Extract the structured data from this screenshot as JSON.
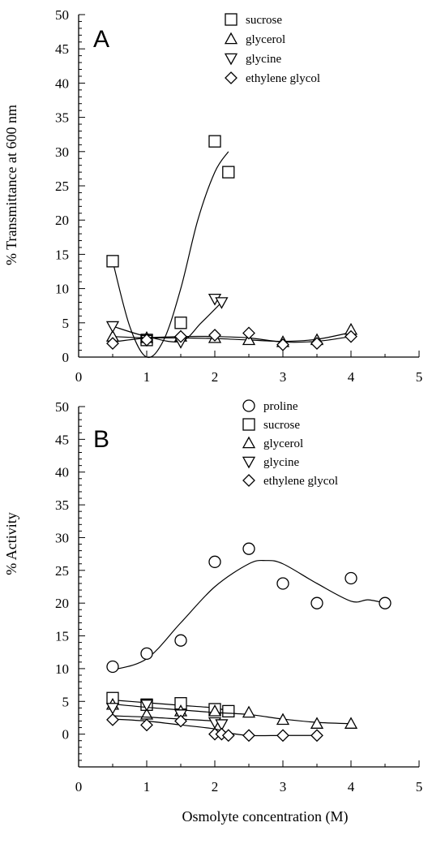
{
  "chart_data": [
    {
      "type": "scatter",
      "panel_label": "A",
      "ylabel": "% Transmittance at 600 nm",
      "xlabel": "",
      "xlim": [
        0,
        5
      ],
      "ylim": [
        0,
        50
      ],
      "xticks": [
        "0",
        "1",
        "2",
        "3",
        "4",
        "5"
      ],
      "yticks": [
        "0",
        "5",
        "10",
        "15",
        "20",
        "25",
        "30",
        "35",
        "40",
        "45",
        "50"
      ],
      "grid": false,
      "legend_position": "top-right",
      "series": [
        {
          "name": "sucrose",
          "marker": "square",
          "points": [
            [
              0.5,
              14
            ],
            [
              1.0,
              2.5
            ],
            [
              1.5,
              5
            ],
            [
              2.0,
              31.5
            ],
            [
              2.2,
              27
            ]
          ],
          "fit": [
            [
              0.5,
              14
            ],
            [
              0.75,
              4.5
            ],
            [
              1.0,
              0
            ],
            [
              1.25,
              2.5
            ],
            [
              1.5,
              10
            ],
            [
              1.75,
              20
            ],
            [
              2.0,
              27
            ],
            [
              2.2,
              30
            ]
          ]
        },
        {
          "name": "glycerol",
          "marker": "triangle-up",
          "points": [
            [
              0.5,
              3
            ],
            [
              1.0,
              2.8
            ],
            [
              1.5,
              3
            ],
            [
              2.0,
              2.8
            ],
            [
              2.5,
              2.5
            ],
            [
              3.0,
              2.2
            ],
            [
              3.5,
              2.5
            ],
            [
              4.0,
              4
            ]
          ],
          "fit": [
            [
              0.5,
              3
            ],
            [
              1.0,
              2.8
            ],
            [
              1.5,
              2.8
            ],
            [
              2.0,
              2.7
            ],
            [
              2.5,
              2.5
            ],
            [
              3.0,
              2.3
            ],
            [
              3.5,
              2.6
            ],
            [
              4.0,
              3.6
            ]
          ]
        },
        {
          "name": "glycine",
          "marker": "triangle-down",
          "points": [
            [
              0.5,
              4.5
            ],
            [
              1.0,
              2.5
            ],
            [
              1.5,
              2.2
            ],
            [
              2.0,
              8.5
            ],
            [
              2.1,
              8
            ]
          ],
          "fit": [
            [
              0.5,
              4.5
            ],
            [
              1.0,
              3.0
            ],
            [
              1.5,
              2.3
            ],
            [
              1.8,
              5
            ],
            [
              2.1,
              8
            ]
          ]
        },
        {
          "name": "ethylene glycol",
          "marker": "diamond",
          "points": [
            [
              0.5,
              2
            ],
            [
              1.0,
              2.5
            ],
            [
              1.5,
              3
            ],
            [
              2.0,
              3.2
            ],
            [
              2.5,
              3.5
            ],
            [
              3.0,
              1.8
            ],
            [
              3.5,
              2
            ],
            [
              4.0,
              3
            ]
          ],
          "fit": [
            [
              0.5,
              2.2
            ],
            [
              1.0,
              2.8
            ],
            [
              1.5,
              3.0
            ],
            [
              2.0,
              3.0
            ],
            [
              2.5,
              2.8
            ],
            [
              3.0,
              2.2
            ],
            [
              3.5,
              2.3
            ],
            [
              4.0,
              3.0
            ]
          ]
        }
      ]
    },
    {
      "type": "scatter",
      "panel_label": "B",
      "ylabel": "% Activity",
      "xlabel": "Osmolyte concentration (M)",
      "xlim": [
        0,
        5
      ],
      "ylim": [
        -5,
        50
      ],
      "xticks": [
        "0",
        "1",
        "2",
        "3",
        "4",
        "5"
      ],
      "yticks": [
        "0",
        "5",
        "10",
        "15",
        "20",
        "25",
        "30",
        "35",
        "40",
        "45",
        "50"
      ],
      "grid": false,
      "legend_position": "top-right",
      "series": [
        {
          "name": "proline",
          "marker": "circle",
          "points": [
            [
              0.5,
              10.3
            ],
            [
              1.0,
              12.3
            ],
            [
              1.5,
              14.3
            ],
            [
              2.0,
              26.3
            ],
            [
              2.5,
              28.3
            ],
            [
              3.0,
              23
            ],
            [
              3.5,
              20
            ],
            [
              4.0,
              23.8
            ],
            [
              4.5,
              20
            ]
          ],
          "fit": [
            [
              0.5,
              9.8
            ],
            [
              1.0,
              11.5
            ],
            [
              1.5,
              17
            ],
            [
              2.0,
              22.5
            ],
            [
              2.5,
              26
            ],
            [
              2.75,
              26.5
            ],
            [
              3.0,
              26
            ],
            [
              3.5,
              23
            ],
            [
              4.0,
              20.3
            ],
            [
              4.25,
              20.5
            ],
            [
              4.5,
              20
            ]
          ]
        },
        {
          "name": "sucrose",
          "marker": "square",
          "points": [
            [
              0.5,
              5.5
            ],
            [
              1.0,
              4.5
            ],
            [
              1.5,
              4.7
            ],
            [
              2.0,
              3.8
            ],
            [
              2.2,
              3.5
            ]
          ],
          "fit": [
            [
              0.5,
              5.2
            ],
            [
              1.0,
              4.8
            ],
            [
              1.5,
              4.4
            ],
            [
              2.0,
              4.0
            ],
            [
              2.2,
              3.5
            ]
          ]
        },
        {
          "name": "glycerol",
          "marker": "triangle-up",
          "points": [
            [
              0.5,
              4.5
            ],
            [
              1.0,
              3.0
            ],
            [
              1.5,
              3.5
            ],
            [
              2.0,
              3.5
            ],
            [
              2.5,
              3.3
            ],
            [
              3.0,
              2.2
            ],
            [
              3.5,
              1.6
            ],
            [
              4.0,
              1.6
            ]
          ],
          "fit": [
            [
              0.5,
              4.6
            ],
            [
              1.0,
              4.1
            ],
            [
              1.5,
              3.7
            ],
            [
              2.0,
              3.3
            ],
            [
              2.5,
              3.0
            ],
            [
              3.0,
              2.3
            ],
            [
              3.5,
              1.8
            ],
            [
              4.0,
              1.6
            ]
          ]
        },
        {
          "name": "glycine",
          "marker": "triangle-down",
          "points": [
            [
              0.5,
              4.0
            ],
            [
              1.0,
              4.5
            ],
            [
              1.5,
              3.0
            ],
            [
              2.0,
              1.8
            ],
            [
              2.1,
              1.5
            ]
          ],
          "fit": [
            [
              0.5,
              2.8
            ],
            [
              1.0,
              2.6
            ],
            [
              1.5,
              2.3
            ],
            [
              2.0,
              2.0
            ],
            [
              2.1,
              1.8
            ]
          ]
        },
        {
          "name": "ethylene glycol",
          "marker": "diamond",
          "points": [
            [
              0.5,
              2.2
            ],
            [
              1.0,
              1.4
            ],
            [
              1.5,
              2.0
            ],
            [
              2.0,
              0
            ],
            [
              2.1,
              0
            ],
            [
              2.2,
              -0.2
            ],
            [
              2.5,
              -0.2
            ],
            [
              3.0,
              -0.2
            ],
            [
              3.5,
              -0.2
            ]
          ],
          "fit": [
            [
              0.5,
              2.3
            ],
            [
              1.0,
              2.0
            ],
            [
              1.5,
              1.4
            ],
            [
              2.0,
              0.8
            ],
            [
              2.2,
              0.2
            ],
            [
              2.5,
              -0.2
            ],
            [
              3.0,
              -0.2
            ],
            [
              3.5,
              -0.2
            ]
          ]
        }
      ]
    }
  ]
}
